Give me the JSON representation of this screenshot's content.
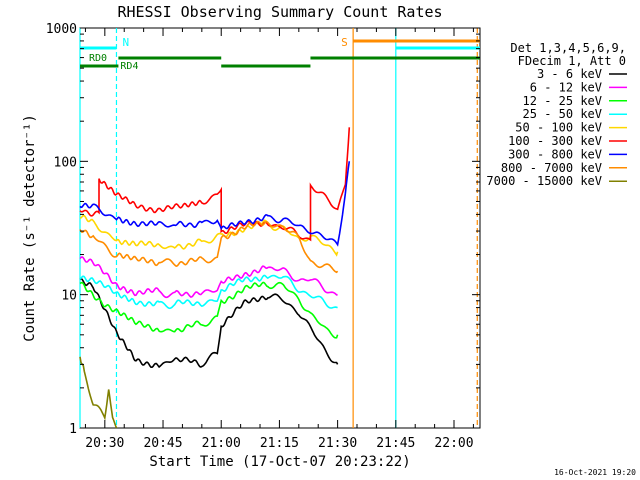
{
  "chart_data": {
    "type": "line",
    "title": "RHESSI Observing Summary Count Rates",
    "xlabel": "Start Time (17-Oct-07 20:23:22)",
    "ylabel": "Count Rate (s⁻¹ detector⁻¹)",
    "yscale": "log",
    "ylim": [
      1,
      1000
    ],
    "xlim_minutes": [
      -6.4,
      96.7
    ],
    "x_unit": "minutes after 20:30 UT",
    "xticks": [
      {
        "label": "20:30",
        "t": 0
      },
      {
        "label": "20:45",
        "t": 15
      },
      {
        "label": "21:00",
        "t": 30
      },
      {
        "label": "21:15",
        "t": 45
      },
      {
        "label": "21:30",
        "t": 60
      },
      {
        "label": "21:45",
        "t": 75
      },
      {
        "label": "22:00",
        "t": 90
      }
    ],
    "yticks": [
      {
        "label": "1",
        "v": 1
      },
      {
        "label": "10",
        "v": 10
      },
      {
        "label": "100",
        "v": 100
      },
      {
        "label": "1000",
        "v": 1000
      }
    ],
    "legend_header": [
      "Det 1,3,4,5,6,9,",
      "FDecim 1, Att 0"
    ],
    "legend_position": "right",
    "series": [
      {
        "name": "3 - 6 keV",
        "color": "#000000",
        "points": [
          [
            -6.4,
            13
          ],
          [
            -3,
            12
          ],
          [
            3,
            5
          ],
          [
            8,
            3.2
          ],
          [
            14,
            3
          ],
          [
            18,
            3.3
          ],
          [
            25,
            3
          ],
          [
            29,
            3.6
          ],
          [
            30,
            6
          ],
          [
            36,
            8.5
          ],
          [
            42,
            10
          ],
          [
            46,
            9
          ],
          [
            50,
            7.5
          ],
          [
            53,
            5.5
          ],
          [
            57,
            3.8
          ],
          [
            60,
            3
          ]
        ]
      },
      {
        "name": "6 - 12 keV",
        "color": "#ff00ff",
        "points": [
          [
            -6.4,
            19
          ],
          [
            -3,
            17
          ],
          [
            3,
            12
          ],
          [
            8,
            10.5
          ],
          [
            14,
            10.5
          ],
          [
            18,
            10
          ],
          [
            25,
            10.5
          ],
          [
            29,
            10.5
          ],
          [
            30,
            12
          ],
          [
            36,
            14.5
          ],
          [
            42,
            16
          ],
          [
            46,
            15
          ],
          [
            50,
            13
          ],
          [
            53,
            13
          ],
          [
            57,
            11
          ],
          [
            60,
            10
          ]
        ]
      },
      {
        "name": "12 - 25 keV",
        "color": "#00ff00",
        "points": [
          [
            -6.4,
            12
          ],
          [
            -3,
            10
          ],
          [
            3,
            7.5
          ],
          [
            8,
            6
          ],
          [
            14,
            5.5
          ],
          [
            18,
            5.5
          ],
          [
            25,
            6
          ],
          [
            29,
            6.5
          ],
          [
            30,
            9
          ],
          [
            36,
            11
          ],
          [
            42,
            12
          ],
          [
            46,
            11.5
          ],
          [
            50,
            9.5
          ],
          [
            53,
            7
          ],
          [
            57,
            5.5
          ],
          [
            60,
            5
          ]
        ]
      },
      {
        "name": "25 - 50 keV",
        "color": "#00ffff",
        "points": [
          [
            -6.4,
            14
          ],
          [
            -3,
            13
          ],
          [
            3,
            10
          ],
          [
            8,
            9
          ],
          [
            14,
            8.5
          ],
          [
            18,
            8.5
          ],
          [
            25,
            8.8
          ],
          [
            29,
            9
          ],
          [
            30,
            10.5
          ],
          [
            36,
            13
          ],
          [
            42,
            14
          ],
          [
            46,
            13.5
          ],
          [
            50,
            11
          ],
          [
            53,
            10
          ],
          [
            57,
            8.5
          ],
          [
            60,
            8
          ]
        ]
      },
      {
        "name": "50 - 100 keV",
        "color": "#ffd700",
        "points": [
          [
            -6.4,
            38
          ],
          [
            -3,
            34
          ],
          [
            0,
            30
          ],
          [
            3,
            26
          ],
          [
            8,
            24
          ],
          [
            14,
            23
          ],
          [
            18,
            23
          ],
          [
            25,
            25
          ],
          [
            29,
            27
          ],
          [
            30,
            27
          ],
          [
            36,
            32
          ],
          [
            42,
            34
          ],
          [
            46,
            31
          ],
          [
            50,
            26
          ],
          [
            53,
            28
          ],
          [
            57,
            23
          ],
          [
            60,
            21
          ]
        ]
      },
      {
        "name": "100 - 300 keV",
        "color": "#ff0000",
        "points": [
          [
            -6.4,
            44
          ],
          [
            -1.5,
            40
          ],
          [
            -1.5,
            72
          ],
          [
            3,
            55
          ],
          [
            8,
            46
          ],
          [
            14,
            44
          ],
          [
            20,
            45
          ],
          [
            25,
            50
          ],
          [
            29,
            57
          ],
          [
            30,
            62
          ],
          [
            30,
            30
          ],
          [
            36,
            33
          ],
          [
            42,
            35
          ],
          [
            46,
            32
          ],
          [
            50,
            28
          ],
          [
            53,
            26
          ],
          [
            53,
            67
          ],
          [
            57,
            52
          ],
          [
            60,
            44
          ],
          [
            62,
            70
          ],
          [
            63,
            180
          ]
        ]
      },
      {
        "name": "300 - 800 keV",
        "color": "#0000ff",
        "points": [
          [
            -6.4,
            48
          ],
          [
            -3,
            45
          ],
          [
            0,
            41
          ],
          [
            3,
            38
          ],
          [
            8,
            35
          ],
          [
            14,
            33
          ],
          [
            18,
            33
          ],
          [
            25,
            35
          ],
          [
            29,
            37
          ],
          [
            30,
            30
          ],
          [
            36,
            36
          ],
          [
            42,
            38
          ],
          [
            46,
            37
          ],
          [
            50,
            32
          ],
          [
            53,
            31
          ],
          [
            57,
            26
          ],
          [
            60,
            24
          ],
          [
            62,
            60
          ],
          [
            63,
            100
          ]
        ]
      },
      {
        "name": "800 - 7000 keV",
        "color": "#ff8c00",
        "points": [
          [
            -6.4,
            30
          ],
          [
            -3,
            27
          ],
          [
            0,
            23
          ],
          [
            3,
            20
          ],
          [
            8,
            18
          ],
          [
            14,
            17.5
          ],
          [
            18,
            17.5
          ],
          [
            25,
            18
          ],
          [
            29,
            19
          ],
          [
            30,
            27
          ],
          [
            36,
            32
          ],
          [
            42,
            34
          ],
          [
            46,
            33
          ],
          [
            50,
            26
          ],
          [
            53,
            18
          ],
          [
            57,
            16
          ],
          [
            60,
            15
          ]
        ]
      },
      {
        "name": "7000 - 15000 keV",
        "color": "#808000",
        "points": [
          [
            -6.4,
            3.5
          ],
          [
            -5,
            2.5
          ],
          [
            -3,
            1.5
          ],
          [
            0,
            1.2
          ],
          [
            1,
            2
          ],
          [
            2,
            1.2
          ],
          [
            3,
            1
          ]
        ]
      }
    ],
    "flag_bars": [
      {
        "label": "RD0",
        "color": "#008000",
        "t_start": -6.4,
        "t_end": 3.5,
        "level": "low"
      },
      {
        "label": "RD4",
        "color": "#008000",
        "t_start": 3.5,
        "t_end": 96.7,
        "level": "stepped"
      },
      {
        "label": "",
        "color": "#00ffff",
        "t_start": -6.4,
        "t_end": 3,
        "level": "upper"
      },
      {
        "label": "",
        "color": "#00ffff",
        "t_start": 75,
        "t_end": 96.7,
        "level": "upper"
      },
      {
        "label": "",
        "color": "#ff8c00",
        "t_start": 64,
        "t_end": 96.7,
        "level": "top"
      }
    ],
    "event_markers": [
      {
        "label": "N",
        "t": 3,
        "color": "#00ffff",
        "style": "dashed"
      },
      {
        "label": "",
        "t": -6.4,
        "color": "#00ffff",
        "style": "solid"
      },
      {
        "label": "",
        "t": 75,
        "color": "#00ffff",
        "style": "solid"
      },
      {
        "label": "S",
        "t": 64,
        "color": "#ff8c00",
        "style": "solid"
      },
      {
        "label": "",
        "t": 96,
        "color": "#ff8c00",
        "style": "dashed"
      }
    ],
    "grid": false
  },
  "footer": {
    "timestamp": "16-Oct-2021 19:20"
  }
}
